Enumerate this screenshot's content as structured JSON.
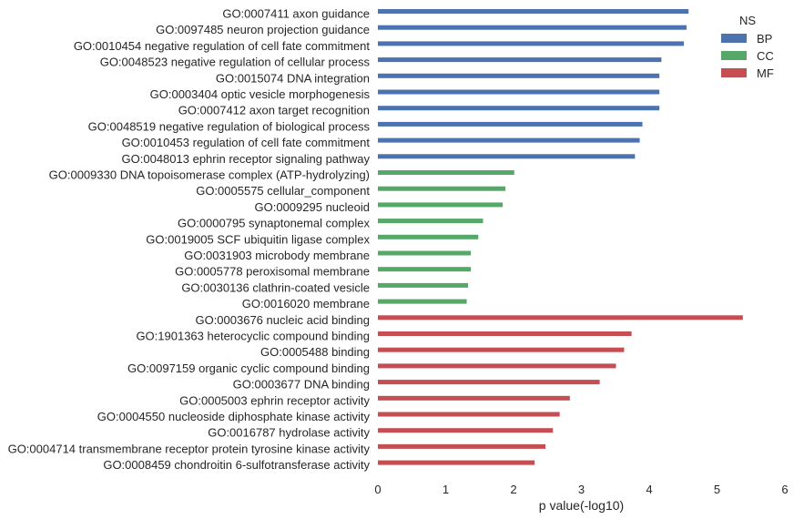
{
  "chart_data": {
    "type": "bar",
    "orientation": "horizontal",
    "xlabel": "p value(-log10)",
    "ylabel": "",
    "title": "",
    "xlim": [
      0,
      6
    ],
    "xticks": [
      "0",
      "1",
      "2",
      "3",
      "4",
      "5",
      "6"
    ],
    "grid": false,
    "legend": {
      "title": "NS",
      "placement": "top-right",
      "entries": [
        {
          "name": "BP",
          "color": "#4c72b0"
        },
        {
          "name": "CC",
          "color": "#55a868"
        },
        {
          "name": "MF",
          "color": "#c44e52"
        }
      ]
    },
    "bars": [
      {
        "label": "GO:0007411 axon guidance",
        "value": 4.58,
        "ns": "BP"
      },
      {
        "label": "GO:0097485 neuron projection guidance",
        "value": 4.55,
        "ns": "BP"
      },
      {
        "label": "GO:0010454 negative regulation of cell fate commitment",
        "value": 4.51,
        "ns": "BP"
      },
      {
        "label": "GO:0048523 negative regulation of cellular process",
        "value": 4.18,
        "ns": "BP"
      },
      {
        "label": "GO:0015074 DNA integration",
        "value": 4.15,
        "ns": "BP"
      },
      {
        "label": "GO:0003404 optic vesicle morphogenesis",
        "value": 4.15,
        "ns": "BP"
      },
      {
        "label": "GO:0007412 axon target recognition",
        "value": 4.15,
        "ns": "BP"
      },
      {
        "label": "GO:0048519 negative regulation of biological process",
        "value": 3.9,
        "ns": "BP"
      },
      {
        "label": "GO:0010453 regulation of cell fate commitment",
        "value": 3.86,
        "ns": "BP"
      },
      {
        "label": "GO:0048013 ephrin receptor signaling pathway",
        "value": 3.79,
        "ns": "BP"
      },
      {
        "label": "GO:0009330 DNA topoisomerase complex (ATP-hydrolyzing)",
        "value": 2.01,
        "ns": "CC"
      },
      {
        "label": "GO:0005575 cellular_component",
        "value": 1.88,
        "ns": "CC"
      },
      {
        "label": "GO:0009295 nucleoid",
        "value": 1.84,
        "ns": "CC"
      },
      {
        "label": "GO:0000795 synaptonemal complex",
        "value": 1.55,
        "ns": "CC"
      },
      {
        "label": "GO:0019005 SCF ubiquitin ligase complex",
        "value": 1.48,
        "ns": "CC"
      },
      {
        "label": "GO:0031903 microbody membrane",
        "value": 1.37,
        "ns": "CC"
      },
      {
        "label": "GO:0005778 peroxisomal membrane",
        "value": 1.37,
        "ns": "CC"
      },
      {
        "label": "GO:0030136 clathrin-coated vesicle",
        "value": 1.33,
        "ns": "CC"
      },
      {
        "label": "GO:0016020 membrane",
        "value": 1.31,
        "ns": "CC"
      },
      {
        "label": "GO:0003676 nucleic acid binding",
        "value": 5.38,
        "ns": "MF"
      },
      {
        "label": "GO:1901363 heterocyclic compound binding",
        "value": 3.74,
        "ns": "MF"
      },
      {
        "label": "GO:0005488 binding",
        "value": 3.63,
        "ns": "MF"
      },
      {
        "label": "GO:0097159 organic cyclic compound binding",
        "value": 3.51,
        "ns": "MF"
      },
      {
        "label": "GO:0003677 DNA binding",
        "value": 3.27,
        "ns": "MF"
      },
      {
        "label": "GO:0005003 ephrin receptor activity",
        "value": 2.83,
        "ns": "MF"
      },
      {
        "label": "GO:0004550 nucleoside diphosphate kinase activity",
        "value": 2.68,
        "ns": "MF"
      },
      {
        "label": "GO:0016787 hydrolase activity",
        "value": 2.58,
        "ns": "MF"
      },
      {
        "label": "GO:0004714 transmembrane receptor protein tyrosine kinase activity",
        "value": 2.47,
        "ns": "MF"
      },
      {
        "label": "GO:0008459 chondroitin 6-sulfotransferase activity",
        "value": 2.31,
        "ns": "MF"
      }
    ]
  }
}
